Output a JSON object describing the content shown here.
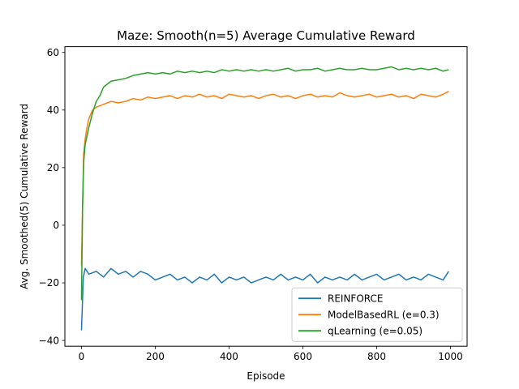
{
  "chart_data": {
    "type": "line",
    "title": "Maze: Smooth(n=5) Average Cumulative Reward",
    "xlabel": "Episode",
    "ylabel": "Avg. Smoothed(5) Cumulative Reward",
    "xlim": [
      -45,
      1045
    ],
    "ylim": [
      -42,
      62
    ],
    "xticks": [
      0,
      200,
      400,
      600,
      800,
      1000
    ],
    "yticks": [
      -40,
      -20,
      0,
      20,
      40,
      60
    ],
    "grid": false,
    "legend_position": "lower-right",
    "series": [
      {
        "name": "REINFORCE",
        "color": "#1f77b4",
        "x": [
          0,
          5,
          10,
          20,
          40,
          60,
          80,
          100,
          120,
          140,
          160,
          180,
          200,
          220,
          240,
          260,
          280,
          300,
          320,
          340,
          360,
          380,
          400,
          420,
          440,
          460,
          480,
          500,
          520,
          540,
          560,
          580,
          600,
          620,
          640,
          660,
          680,
          700,
          720,
          740,
          760,
          780,
          800,
          820,
          840,
          860,
          880,
          900,
          920,
          940,
          960,
          980,
          995
        ],
        "y": [
          -36.5,
          -18,
          -15,
          -17,
          -16,
          -18,
          -15,
          -17,
          -16,
          -18,
          -16,
          -17,
          -19,
          -18,
          -17,
          -19,
          -18,
          -20,
          -18,
          -19,
          -17,
          -20,
          -18,
          -19,
          -18,
          -20,
          -19,
          -18,
          -19,
          -17,
          -19,
          -18,
          -19,
          -17,
          -20,
          -18,
          -19,
          -18,
          -19,
          -17,
          -19,
          -18,
          -17,
          -19,
          -18,
          -17,
          -19,
          -18,
          -19,
          -17,
          -18,
          -19,
          -16
        ]
      },
      {
        "name": "ModelBasedRL (e=0.3)",
        "color": "#ff7f0e",
        "x": [
          0,
          3,
          6,
          10,
          15,
          20,
          30,
          40,
          60,
          80,
          100,
          120,
          140,
          160,
          180,
          200,
          220,
          240,
          260,
          280,
          300,
          320,
          340,
          360,
          380,
          400,
          420,
          440,
          460,
          480,
          500,
          520,
          540,
          560,
          580,
          600,
          620,
          640,
          660,
          680,
          700,
          720,
          740,
          760,
          780,
          800,
          820,
          840,
          860,
          880,
          900,
          920,
          940,
          960,
          980,
          995
        ],
        "y": [
          -14,
          8,
          25,
          30,
          34,
          37,
          40,
          41,
          42,
          43,
          42.5,
          43,
          44,
          43.5,
          44.5,
          44,
          44.5,
          45,
          44,
          45,
          44.5,
          45.5,
          44.5,
          45,
          44,
          45.5,
          45,
          44.5,
          45,
          44,
          45,
          45.5,
          44.5,
          45,
          44,
          45,
          45.5,
          44.5,
          45,
          44.5,
          46,
          45,
          44.5,
          45,
          45.5,
          44.5,
          45,
          45.5,
          44.5,
          45,
          44,
          45.5,
          45,
          44.5,
          45.5,
          46.5
        ]
      },
      {
        "name": "qLearning (e=0.05)",
        "color": "#2ca02c",
        "x": [
          0,
          3,
          6,
          10,
          15,
          20,
          30,
          40,
          50,
          60,
          80,
          100,
          120,
          140,
          160,
          180,
          200,
          220,
          240,
          260,
          280,
          300,
          320,
          340,
          360,
          380,
          400,
          420,
          440,
          460,
          480,
          500,
          520,
          540,
          560,
          580,
          600,
          620,
          640,
          660,
          680,
          700,
          720,
          740,
          760,
          780,
          800,
          820,
          840,
          860,
          880,
          900,
          920,
          940,
          960,
          980,
          995
        ],
        "y": [
          -26,
          6,
          22,
          28,
          31,
          34,
          39,
          43,
          45,
          48,
          50,
          50.5,
          51,
          52,
          52.5,
          53,
          52.5,
          53,
          52.5,
          53.5,
          53,
          53.5,
          53,
          53.5,
          53,
          54,
          53.5,
          54,
          53.5,
          54,
          53.5,
          54,
          53.5,
          54,
          54.5,
          53.5,
          54,
          54,
          54.5,
          53.5,
          54,
          54.5,
          54,
          54,
          54.5,
          54,
          54,
          54.5,
          55,
          54,
          54.5,
          54,
          54.5,
          54,
          54.5,
          53.5,
          54
        ]
      }
    ]
  }
}
